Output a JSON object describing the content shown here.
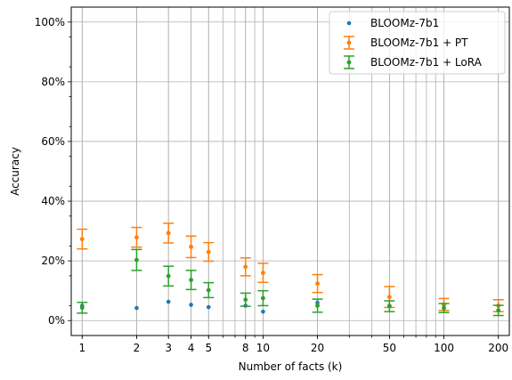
{
  "chart_data": {
    "type": "scatter",
    "title": "",
    "xlabel": "Number of facts (k)",
    "ylabel": "Accuracy",
    "x_scale": "log",
    "xlim": [
      0.87,
      230
    ],
    "ylim": [
      -5,
      105
    ],
    "grid": true,
    "legend_position": "upper right",
    "x_ticks": [
      {
        "value": 1,
        "label": "1"
      },
      {
        "value": 2,
        "label": "2"
      },
      {
        "value": 3,
        "label": "3"
      },
      {
        "value": 4,
        "label": "4"
      },
      {
        "value": 5,
        "label": "5"
      },
      {
        "value": 8,
        "label": "8"
      },
      {
        "value": 10,
        "label": "10"
      },
      {
        "value": 20,
        "label": "20"
      },
      {
        "value": 50,
        "label": "50"
      },
      {
        "value": 100,
        "label": "100"
      },
      {
        "value": 200,
        "label": "200"
      }
    ],
    "y_ticks": [
      {
        "value": 0,
        "label": "0%"
      },
      {
        "value": 20,
        "label": "20%"
      },
      {
        "value": 40,
        "label": "40%"
      },
      {
        "value": 60,
        "label": "60%"
      },
      {
        "value": 80,
        "label": "80%"
      },
      {
        "value": 100,
        "label": "100%"
      }
    ],
    "x": [
      1,
      2,
      3,
      4,
      5,
      8,
      10,
      20,
      50,
      100,
      200
    ],
    "series": [
      {
        "name": "BLOOMz-7b1",
        "color": "#1f77b4",
        "marker": "point",
        "values": [
          5.0,
          4.2,
          6.3,
          5.3,
          4.5,
          5.0,
          3.0,
          6.0,
          5.0,
          5.2,
          5.0
        ]
      },
      {
        "name": "BLOOMz-7b1 + PT",
        "color": "#ff7f0e",
        "marker": "errorbar",
        "values": [
          27.3,
          27.9,
          29.3,
          24.7,
          23.0,
          18.0,
          16.0,
          12.4,
          7.9,
          5.4,
          5.0
        ],
        "errors": [
          3.3,
          3.3,
          3.3,
          3.6,
          3.1,
          3.0,
          3.2,
          3.0,
          3.5,
          2.0,
          2.0
        ]
      },
      {
        "name": "BLOOMz-7b1 + LoRA",
        "color": "#2ca02c",
        "marker": "errorbar",
        "values": [
          4.3,
          20.3,
          14.9,
          13.6,
          10.2,
          7.0,
          7.5,
          5.0,
          4.8,
          4.2,
          3.4
        ],
        "errors": [
          1.8,
          3.5,
          3.3,
          3.2,
          2.5,
          2.2,
          2.5,
          2.2,
          1.8,
          1.5,
          1.7
        ]
      }
    ]
  }
}
